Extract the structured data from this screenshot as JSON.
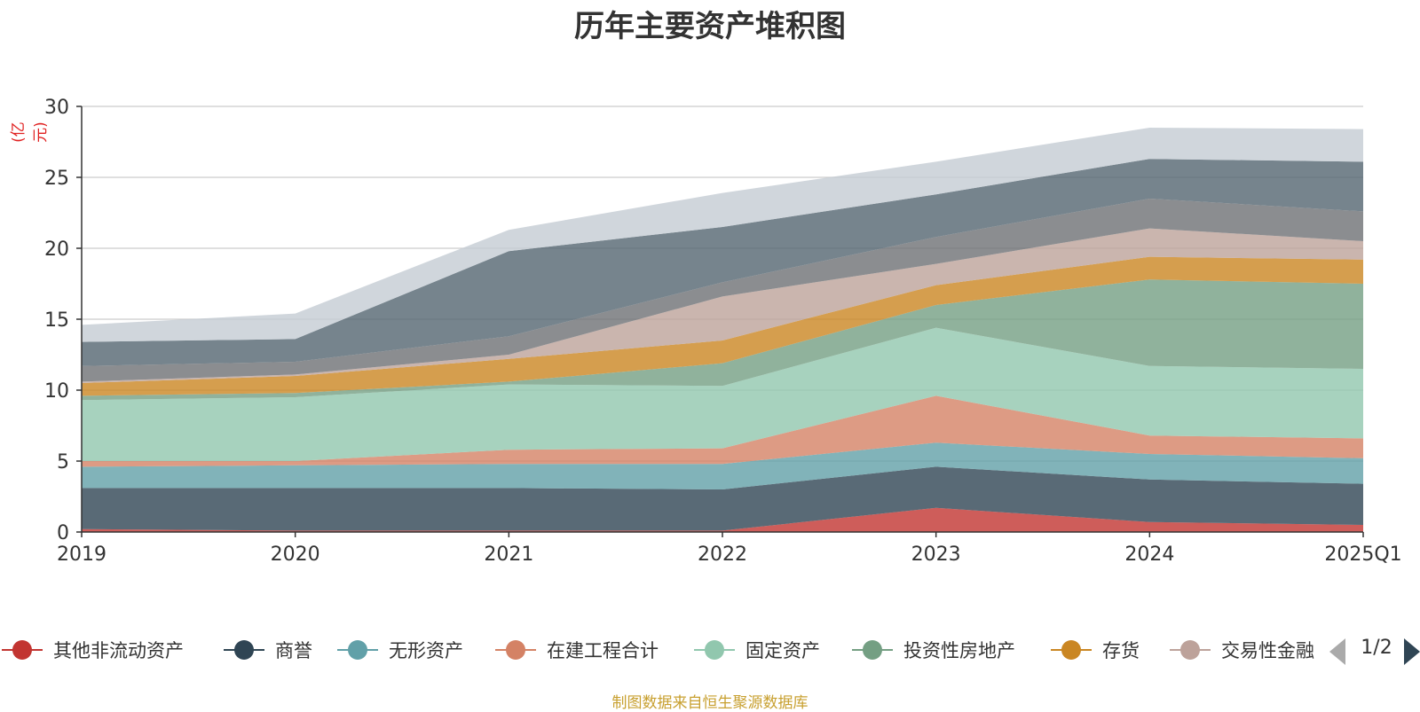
{
  "title": "历年主要资产堆积图",
  "unit_label": "(亿元)",
  "source_note": "制图数据来自恒生聚源数据库",
  "legend_pager": {
    "text": "1/2"
  },
  "chart_data": {
    "type": "area",
    "stacked": true,
    "title": "历年主要资产堆积图",
    "ylabel": "(亿元)",
    "categories": [
      "2019",
      "2020",
      "2021",
      "2022",
      "2023",
      "2024",
      "2025Q1"
    ],
    "ylim": [
      0,
      30
    ],
    "yticks": [
      0,
      5,
      10,
      15,
      20,
      25,
      30
    ],
    "grid": true,
    "legend_position": "bottom",
    "series": [
      {
        "name": "其他非流动资产",
        "color": "#c23531",
        "values": [
          0.2,
          0.1,
          0.1,
          0.1,
          1.7,
          0.7,
          0.5
        ]
      },
      {
        "name": "商誉",
        "color": "#2f4554",
        "values": [
          2.9,
          3.0,
          3.0,
          2.9,
          2.9,
          3.0,
          2.9
        ]
      },
      {
        "name": "无形资产",
        "color": "#61a0a8",
        "values": [
          1.5,
          1.6,
          1.7,
          1.8,
          1.7,
          1.8,
          1.8
        ]
      },
      {
        "name": "在建工程合计",
        "color": "#d48265",
        "values": [
          0.4,
          0.3,
          1.0,
          1.1,
          3.3,
          1.3,
          1.4
        ]
      },
      {
        "name": "固定资产",
        "color": "#91c7ae",
        "values": [
          4.3,
          4.5,
          4.6,
          4.4,
          4.8,
          4.9,
          4.9
        ]
      },
      {
        "name": "投资性房地产",
        "color": "#749f83",
        "values": [
          0.3,
          0.3,
          0.2,
          1.6,
          1.6,
          6.1,
          6.0
        ]
      },
      {
        "name": "存货",
        "color": "#ca8622",
        "values": [
          0.9,
          1.2,
          1.6,
          1.6,
          1.4,
          1.6,
          1.7
        ]
      },
      {
        "name": "交易性金融资产",
        "color": "#bda29a",
        "values": [
          0.1,
          0.1,
          0.3,
          3.1,
          1.5,
          2.0,
          1.3
        ]
      },
      {
        "name": "",
        "color": "#6e7074",
        "values": [
          1.1,
          0.9,
          1.3,
          1.0,
          1.9,
          2.1,
          2.1
        ]
      },
      {
        "name": "",
        "color": "#546570",
        "values": [
          1.7,
          1.6,
          6.0,
          3.9,
          3.0,
          2.8,
          3.5
        ]
      },
      {
        "name": "",
        "color": "#c4ccd3",
        "values": [
          1.2,
          1.8,
          1.5,
          2.4,
          2.3,
          2.2,
          2.3
        ]
      }
    ]
  }
}
